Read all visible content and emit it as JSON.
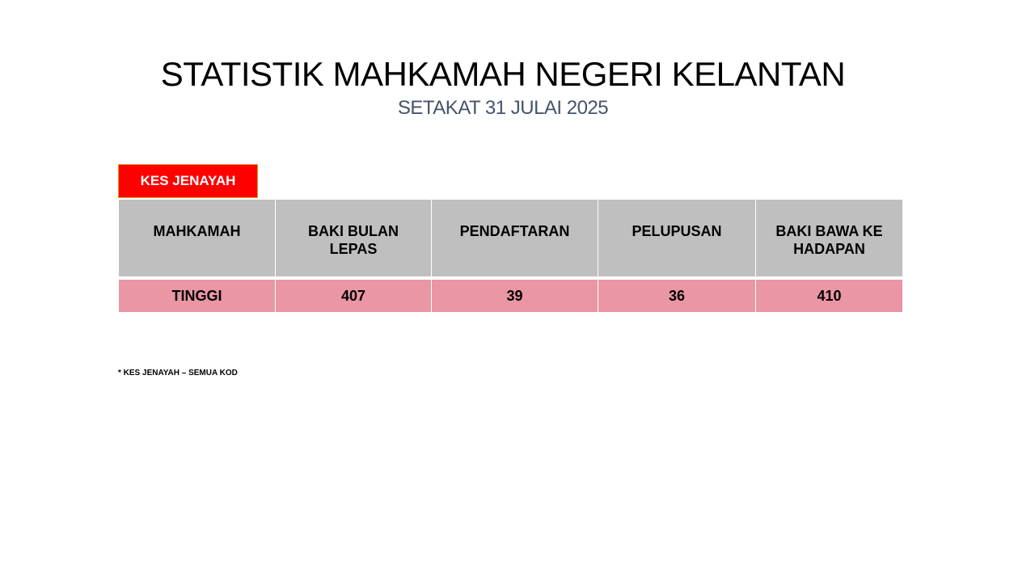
{
  "header": {
    "title": "STATISTIK MAHKAMAH NEGERI KELANTAN",
    "subtitle": "SETAKAT 31 JULAI 2025"
  },
  "tab": "KES JENAYAH",
  "table": {
    "columns": [
      "MAHKAMAH",
      "BAKI BULAN LEPAS",
      "PENDAFTARAN",
      "PELUPUSAN",
      "BAKI BAWA KE HADAPAN"
    ],
    "rows": [
      [
        "TINGGI",
        407,
        39,
        36,
        410
      ]
    ]
  },
  "footnote": "* KES JENAYAH – SEMUA KOD"
}
